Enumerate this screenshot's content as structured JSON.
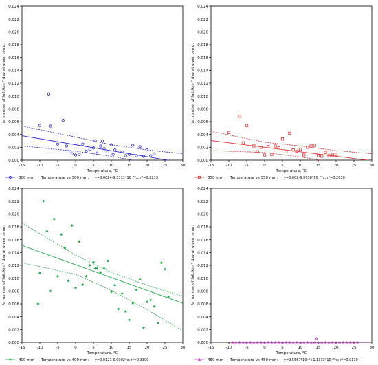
{
  "chart_data": [
    {
      "type": "scatter",
      "ylabel": "λ₀ number of fail./km * day at given temp.",
      "xlabel": "Temperature, °C",
      "xlim": [
        -15,
        30
      ],
      "ylim": [
        0,
        0.024
      ],
      "x_ticks": [
        "-15",
        "-10",
        "-5",
        "0",
        "5",
        "10",
        "15",
        "20",
        "25",
        "30"
      ],
      "y_ticks": [
        "0.000",
        "0.002",
        "0.004",
        "0.006",
        "0.008",
        "0.010",
        "0.012",
        "0.014",
        "0.016",
        "0.018",
        "0.020",
        "0.022",
        "0.024"
      ],
      "color": "#2222cc",
      "marker": "circle",
      "points": [
        [
          -7.5,
          0.0103
        ],
        [
          -10,
          0.0054
        ],
        [
          -7,
          0.0053
        ],
        [
          -3.5,
          0.0062
        ],
        [
          -5,
          0.0025
        ],
        [
          -2.5,
          0.0022
        ],
        [
          -1.5,
          0.0013
        ],
        [
          -1,
          0.001
        ],
        [
          0,
          0.0008
        ],
        [
          1,
          0.0009
        ],
        [
          2,
          0.0025
        ],
        [
          3,
          0.0014
        ],
        [
          4,
          0.0017
        ],
        [
          5,
          0.0019
        ],
        [
          5.5,
          0.003
        ],
        [
          6,
          0.0011
        ],
        [
          7,
          0.0022
        ],
        [
          7.5,
          0.003
        ],
        [
          8,
          0.0018
        ],
        [
          9,
          0.0013
        ],
        [
          10,
          0.0024
        ],
        [
          10.5,
          0.0009
        ],
        [
          11,
          0.0016
        ],
        [
          13,
          0.0013
        ],
        [
          14,
          0.0007
        ],
        [
          15,
          0.0009
        ],
        [
          16,
          0.0023
        ],
        [
          17,
          0.0007
        ],
        [
          18,
          0.0021
        ],
        [
          19,
          0.0006
        ],
        [
          20,
          0.0016
        ],
        [
          21,
          0.0007
        ],
        [
          22,
          0.001
        ]
      ],
      "fit": {
        "intercept": 0.0024,
        "slope": -9.331e-05
      },
      "ci_upper": [
        [
          -15,
          0.0053
        ],
        [
          0,
          0.0036
        ],
        [
          10,
          0.0024
        ],
        [
          20,
          0.0016
        ],
        [
          30,
          0.001
        ]
      ],
      "ci_lower": [
        [
          -15,
          0.0022
        ],
        [
          0,
          0.0014
        ],
        [
          10,
          0.0006
        ],
        [
          20,
          -0.0004
        ],
        [
          30,
          -0.0015
        ]
      ],
      "legend": {
        "series": "300 mm",
        "label": "Temperature vs 300 mm:",
        "equation": "y=0.0024-9.3311*10⁻⁵*x; r²=0.2213"
      }
    },
    {
      "type": "scatter",
      "ylabel": "λ₀ number of fail./km * day at given temp.",
      "xlabel": "Temperature, °C",
      "xlim": [
        -15,
        30
      ],
      "ylim": [
        0,
        0.024
      ],
      "x_ticks": [
        "-15",
        "-10",
        "-5",
        "0",
        "5",
        "10",
        "15",
        "20",
        "25",
        "30"
      ],
      "y_ticks": [
        "0.000",
        "0.002",
        "0.004",
        "0.006",
        "0.008",
        "0.010",
        "0.012",
        "0.014",
        "0.016",
        "0.018",
        "0.020",
        "0.022",
        "0.024"
      ],
      "color": "#e03030",
      "marker": "square",
      "points": [
        [
          -7,
          0.0068
        ],
        [
          -10,
          0.0043
        ],
        [
          -5,
          0.0054
        ],
        [
          -6,
          0.0027
        ],
        [
          -3,
          0.0022
        ],
        [
          -2,
          0.0013
        ],
        [
          -1,
          0.002
        ],
        [
          0,
          0.0008
        ],
        [
          1,
          0.0021
        ],
        [
          2,
          0.0009
        ],
        [
          3,
          0.0022
        ],
        [
          4,
          0.0019
        ],
        [
          5,
          0.0033
        ],
        [
          6,
          0.0013
        ],
        [
          7,
          0.0042
        ],
        [
          8,
          0.0016
        ],
        [
          9,
          0.0014
        ],
        [
          10,
          0.0017
        ],
        [
          11,
          0.0008
        ],
        [
          12,
          0.002
        ],
        [
          13,
          0.0022
        ],
        [
          14,
          0.0023
        ],
        [
          15,
          0.0007
        ],
        [
          16,
          0.0006
        ],
        [
          17,
          0.0012
        ],
        [
          18,
          0.0007
        ],
        [
          19,
          0.0008
        ],
        [
          20,
          0.0009
        ]
      ],
      "fit": {
        "intercept": 0.002,
        "slope": -6.974e-05
      },
      "ci_upper": [
        [
          -15,
          0.0045
        ],
        [
          0,
          0.0028
        ],
        [
          10,
          0.0022
        ],
        [
          20,
          0.0015
        ],
        [
          30,
          0.001
        ]
      ],
      "ci_lower": [
        [
          -15,
          0.0015
        ],
        [
          0,
          0.0012
        ],
        [
          10,
          0.0005
        ],
        [
          20,
          -0.0004
        ],
        [
          30,
          -0.0012
        ]
      ],
      "legend": {
        "series": "350 mm",
        "label": "Temperature vs 350 mm:",
        "equation": "y=0.002-6.9738*10⁻⁵*x; r²=0.2030"
      }
    },
    {
      "type": "scatter",
      "ylabel": "λ₀ number of fail./km * day at given temp.",
      "xlabel": "Temperature, °C",
      "xlim": [
        -15,
        30
      ],
      "ylim": [
        0,
        0.024
      ],
      "x_ticks": [
        "-15",
        "-10",
        "-5",
        "0",
        "5",
        "10",
        "15",
        "20",
        "25",
        "30"
      ],
      "y_ticks": [
        "0.000",
        "0.002",
        "0.004",
        "0.006",
        "0.008",
        "0.010",
        "0.012",
        "0.014",
        "0.016",
        "0.018",
        "0.020",
        "0.022",
        "0.024"
      ],
      "color": "#22aa44",
      "marker": "diamond",
      "points": [
        [
          -9,
          0.022
        ],
        [
          -10,
          0.0108
        ],
        [
          -10.5,
          0.006
        ],
        [
          -8,
          0.0173
        ],
        [
          -7,
          0.008
        ],
        [
          -6,
          0.0192
        ],
        [
          -5,
          0.0103
        ],
        [
          -4,
          0.0168
        ],
        [
          -3,
          0.0147
        ],
        [
          -2,
          0.0096
        ],
        [
          -1,
          0.0182
        ],
        [
          0,
          0.0085
        ],
        [
          1,
          0.0157
        ],
        [
          2,
          0.009
        ],
        [
          3,
          0.0103
        ],
        [
          4,
          0.012
        ],
        [
          5,
          0.0125
        ],
        [
          5.5,
          0.0115
        ],
        [
          6,
          0.0115
        ],
        [
          7,
          0.0109
        ],
        [
          8,
          0.0115
        ],
        [
          9,
          0.0127
        ],
        [
          10,
          0.0079
        ],
        [
          11,
          0.0089
        ],
        [
          12,
          0.0052
        ],
        [
          13,
          0.0076
        ],
        [
          14,
          0.0048
        ],
        [
          15,
          0.0035
        ],
        [
          16,
          0.0061
        ],
        [
          17,
          0.0082
        ],
        [
          18,
          0.0098
        ],
        [
          19,
          0.0023
        ],
        [
          20,
          0.0063
        ],
        [
          21,
          0.0066
        ],
        [
          22,
          0.0056
        ],
        [
          23,
          0.003
        ],
        [
          24,
          0.0124
        ],
        [
          25,
          0.0114
        ],
        [
          26,
          0.0071
        ]
      ],
      "fit": {
        "intercept": 0.0121,
        "slope": -0.0002
      },
      "ci_upper": [
        [
          -15,
          0.0186
        ],
        [
          0,
          0.0136
        ],
        [
          10,
          0.0109
        ],
        [
          20,
          0.0089
        ],
        [
          30,
          0.0072
        ]
      ],
      "ci_lower": [
        [
          -15,
          0.0124
        ],
        [
          0,
          0.0106
        ],
        [
          10,
          0.0081
        ],
        [
          20,
          0.0051
        ],
        [
          30,
          0.0018
        ]
      ],
      "legend": {
        "series": "400 mm",
        "label": "Temperature vs 400 mm:",
        "equation": "y=0.0121-0.0002*x; r²=0.3300"
      }
    },
    {
      "type": "scatter",
      "ylabel": "λ₀ number of fail./km * day at given temp.",
      "xlabel": "Temperature, °C",
      "xlim": [
        -15,
        30
      ],
      "ylim": [
        0,
        0.024
      ],
      "x_ticks": [
        "-15",
        "-10",
        "-5",
        "0",
        "5",
        "10",
        "15",
        "20",
        "25",
        "30"
      ],
      "y_ticks": [
        "0.000",
        "0.002",
        "0.004",
        "0.006",
        "0.008",
        "0.010",
        "0.012",
        "0.014",
        "0.016",
        "0.018",
        "0.020",
        "0.022",
        "0.024"
      ],
      "color": "#cc33cc",
      "marker": "triangle",
      "points": [
        [
          14.5,
          0.0006
        ]
      ],
      "baseline_x": [
        -9,
        -8,
        -7,
        -6,
        -5,
        -4,
        -3,
        -2,
        -1,
        0,
        1,
        2,
        3,
        4,
        5,
        6,
        7,
        8,
        9,
        10,
        11,
        12,
        13,
        14,
        15,
        16,
        17,
        18,
        19,
        20,
        21,
        22,
        23,
        24,
        25,
        26
      ],
      "fit": {
        "intercept": 9.5567e-06,
        "slope": 1.1333e-06
      },
      "legend": {
        "series": "450 mm",
        "label": "Temperature vs 450 mm:",
        "equation": "y=9.5567*10⁻⁶+1.1333*10⁻⁶*x; r²=0.0119"
      }
    }
  ]
}
